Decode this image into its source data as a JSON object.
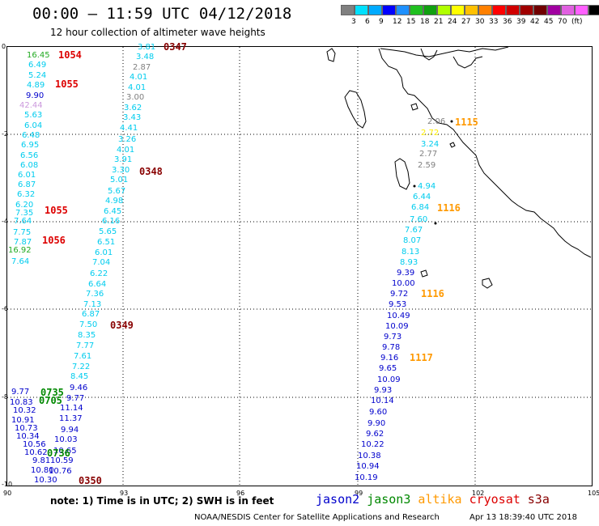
{
  "header": {
    "title": "00:00 – 11:59 UTC 04/12/2018",
    "subtitle": "12 hour collection of altimeter wave heights"
  },
  "legend": {
    "colors": [
      "#808080",
      "#00e0ff",
      "#00aaff",
      "#0000ff",
      "#1e90ff",
      "#20c020",
      "#10a010",
      "#b0ff00",
      "#ffff00",
      "#ffc000",
      "#ff8000",
      "#ff0000",
      "#d00000",
      "#a00000",
      "#700000",
      "#a000a0",
      "#e060e0",
      "#ff60ff",
      "#000000"
    ],
    "labels": [
      "3",
      "6",
      "9",
      "12",
      "15",
      "18",
      "21",
      "24",
      "27",
      "30",
      "33",
      "36",
      "39",
      "42",
      "45",
      "70",
      "(ft)"
    ]
  },
  "axes": {
    "x_ticks": [
      "90",
      "93",
      "96",
      "99",
      "102",
      "105"
    ],
    "y_ticks": [
      "0",
      "-2",
      "-4",
      "-6",
      "-8",
      "-10"
    ]
  },
  "footer": {
    "note": "note:  1) Time is in UTC;  2) SWH is in feet",
    "satellites": [
      {
        "name": "jason2",
        "color": "#0000cc"
      },
      {
        "name": "jason3",
        "color": "#008800"
      },
      {
        "name": "altika",
        "color": "#ff9900"
      },
      {
        "name": "cryosat",
        "color": "#dd0000"
      },
      {
        "name": "s3a",
        "color": "#880000"
      }
    ],
    "credit": "NOAA/NESDIS Center for Satellite Applications and Research",
    "timestamp": "Apr 13 18:39:40 UTC 2018"
  },
  "track_labels": [
    {
      "t": "3.81",
      "c": "#00ccee"
    },
    {
      "t": "3.48",
      "c": "#00ccee"
    },
    {
      "t": "2.87",
      "c": "#808080"
    },
    {
      "t": "4.01",
      "c": "#00ccee"
    },
    {
      "t": "4.01",
      "c": "#00ccee"
    },
    {
      "t": "3.00",
      "c": "#808080"
    },
    {
      "t": "3.62",
      "c": "#00ccee"
    },
    {
      "t": "3.43",
      "c": "#00ccee"
    },
    {
      "t": "4.41",
      "c": "#00ccee"
    },
    {
      "t": "3.26",
      "c": "#00ccee"
    },
    {
      "t": "4.01",
      "c": "#00ccee"
    },
    {
      "t": "3.91",
      "c": "#00ccee"
    },
    {
      "t": "3.30",
      "c": "#00ccee"
    },
    {
      "t": "5.01",
      "c": "#00ccee"
    },
    {
      "t": "5.67",
      "c": "#00ccee"
    },
    {
      "t": "4.98",
      "c": "#00ccee"
    },
    {
      "t": "6.45",
      "c": "#00ccee"
    },
    {
      "t": "6.16",
      "c": "#00ccee"
    },
    {
      "t": "5.65",
      "c": "#00ccee"
    },
    {
      "t": "6.51",
      "c": "#00ccee"
    },
    {
      "t": "6.01",
      "c": "#00ccee"
    },
    {
      "t": "7.04",
      "c": "#00ccee"
    },
    {
      "t": "6.22",
      "c": "#00ccee"
    },
    {
      "t": "6.64",
      "c": "#00ccee"
    },
    {
      "t": "7.36",
      "c": "#00ccee"
    },
    {
      "t": "7.13",
      "c": "#00ccee"
    },
    {
      "t": "6.87",
      "c": "#00ccee"
    },
    {
      "t": "7.50",
      "c": "#00ccee"
    },
    {
      "t": "8.35",
      "c": "#00ccee"
    },
    {
      "t": "7.77",
      "c": "#00ccee"
    },
    {
      "t": "7.61",
      "c": "#00ccee"
    },
    {
      "t": "7.22",
      "c": "#00ccee"
    },
    {
      "t": "8.45",
      "c": "#00ccee"
    },
    {
      "t": "9.46",
      "c": "#0000cc"
    },
    {
      "t": "9.77",
      "c": "#0000cc"
    },
    {
      "t": "11.14",
      "c": "#0000cc"
    },
    {
      "t": "11.37",
      "c": "#0000cc"
    },
    {
      "t": "9.94",
      "c": "#0000cc"
    },
    {
      "t": "10.03",
      "c": "#0000cc"
    },
    {
      "t": "10.65",
      "c": "#0000cc"
    },
    {
      "t": "10.59",
      "c": "#0000cc"
    },
    {
      "t": "10.76",
      "c": "#0000cc"
    },
    {
      "t": "16.45",
      "c": "#22aa22"
    },
    {
      "t": "6.49",
      "c": "#00ccee"
    },
    {
      "t": "5.24",
      "c": "#00ccee"
    },
    {
      "t": "4.89",
      "c": "#00ccee"
    },
    {
      "t": "9.90",
      "c": "#0000cc"
    },
    {
      "t": "42.44",
      "c": "#cc99dd"
    },
    {
      "t": "5.63",
      "c": "#00ccee"
    },
    {
      "t": "6.04",
      "c": "#00ccee"
    },
    {
      "t": "6.48",
      "c": "#00ccee"
    },
    {
      "t": "6.95",
      "c": "#00ccee"
    },
    {
      "t": "6.56",
      "c": "#00ccee"
    },
    {
      "t": "6.08",
      "c": "#00ccee"
    },
    {
      "t": "6.01",
      "c": "#00ccee"
    },
    {
      "t": "6.87",
      "c": "#00ccee"
    },
    {
      "t": "6.32",
      "c": "#00ccee"
    },
    {
      "t": "6.20",
      "c": "#00ccee"
    },
    {
      "t": "7.35",
      "c": "#00ccee"
    },
    {
      "t": "7.64",
      "c": "#00ccee"
    },
    {
      "t": "7.75",
      "c": "#00ccee"
    },
    {
      "t": "7.87",
      "c": "#00ccee"
    },
    {
      "t": "16.92",
      "c": "#22aa22"
    },
    {
      "t": "7.64",
      "c": "#00ccee"
    },
    {
      "t": "9.77",
      "c": "#0000cc"
    },
    {
      "t": "10.83",
      "c": "#0000cc"
    },
    {
      "t": "10.32",
      "c": "#0000cc"
    },
    {
      "t": "10.91",
      "c": "#0000cc"
    },
    {
      "t": "10.73",
      "c": "#0000cc"
    },
    {
      "t": "10.34",
      "c": "#0000cc"
    },
    {
      "t": "10.56",
      "c": "#0000cc"
    },
    {
      "t": "10.62",
      "c": "#0000cc"
    },
    {
      "t": "9.81",
      "c": "#0000cc"
    },
    {
      "t": "10.80",
      "c": "#0000cc"
    },
    {
      "t": "10.30",
      "c": "#0000cc"
    },
    {
      "t": "2.06",
      "c": "#808080"
    },
    {
      "t": "2.72",
      "c": "#ffee00"
    },
    {
      "t": "3.24",
      "c": "#00ccee"
    },
    {
      "t": "2.77",
      "c": "#808080"
    },
    {
      "t": "2.59",
      "c": "#808080"
    },
    {
      "t": "4.94",
      "c": "#00ccee"
    },
    {
      "t": "6.44",
      "c": "#00ccee"
    },
    {
      "t": "6.84",
      "c": "#00ccee"
    },
    {
      "t": "7.60",
      "c": "#00ccee"
    },
    {
      "t": "7.67",
      "c": "#00ccee"
    },
    {
      "t": "8.07",
      "c": "#00ccee"
    },
    {
      "t": "8.13",
      "c": "#00ccee"
    },
    {
      "t": "8.93",
      "c": "#00ccee"
    },
    {
      "t": "9.39",
      "c": "#0000cc"
    },
    {
      "t": "10.00",
      "c": "#0000cc"
    },
    {
      "t": "9.72",
      "c": "#0000cc"
    },
    {
      "t": "9.53",
      "c": "#0000cc"
    },
    {
      "t": "10.49",
      "c": "#0000cc"
    },
    {
      "t": "10.09",
      "c": "#0000cc"
    },
    {
      "t": "9.73",
      "c": "#0000cc"
    },
    {
      "t": "9.78",
      "c": "#0000cc"
    },
    {
      "t": "9.16",
      "c": "#0000cc"
    },
    {
      "t": "9.65",
      "c": "#0000cc"
    },
    {
      "t": "10.09",
      "c": "#0000cc"
    },
    {
      "t": "9.93",
      "c": "#0000cc"
    },
    {
      "t": "10.14",
      "c": "#0000cc"
    },
    {
      "t": "9.60",
      "c": "#0000cc"
    },
    {
      "t": "9.90",
      "c": "#0000cc"
    },
    {
      "t": "9.62",
      "c": "#0000cc"
    },
    {
      "t": "10.22",
      "c": "#0000cc"
    },
    {
      "t": "10.38",
      "c": "#0000cc"
    },
    {
      "t": "10.94",
      "c": "#0000cc"
    },
    {
      "t": "10.19",
      "c": "#0000cc"
    }
  ],
  "time_labels": [
    {
      "t": "0347",
      "c": "#880000"
    },
    {
      "t": "1054",
      "c": "#dd0000"
    },
    {
      "t": "1055",
      "c": "#dd0000"
    },
    {
      "t": "0348",
      "c": "#880000"
    },
    {
      "t": "1055",
      "c": "#dd0000"
    },
    {
      "t": "1056",
      "c": "#dd0000"
    },
    {
      "t": "0349",
      "c": "#880000"
    },
    {
      "t": "0735",
      "c": "#008800"
    },
    {
      "t": "0705",
      "c": "#008800"
    },
    {
      "t": "0736",
      "c": "#008800"
    },
    {
      "t": "0350",
      "c": "#880000"
    },
    {
      "t": "1115",
      "c": "#ff9900"
    },
    {
      "t": "1116",
      "c": "#ff9900"
    },
    {
      "t": "1116",
      "c": "#ff9900"
    },
    {
      "t": "1117",
      "c": "#ff9900"
    }
  ]
}
